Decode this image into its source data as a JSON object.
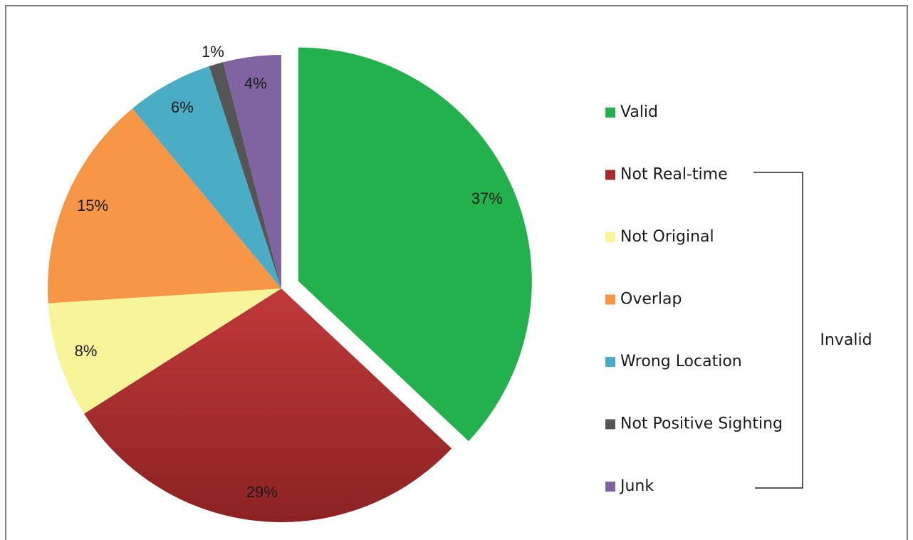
{
  "chart_data": {
    "type": "pie",
    "categories": [
      "Valid",
      "Not Real-time",
      "Not Original",
      "Overlap",
      "Wrong Location",
      "Not Positive Sighting",
      "Junk"
    ],
    "values": [
      37,
      29,
      8,
      15,
      6,
      1,
      4
    ],
    "value_labels": [
      "37%",
      "29%",
      "8%",
      "15%",
      "6%",
      "1%",
      "4%"
    ],
    "colors": [
      "#22b14c",
      "#a52d2c",
      "#f7f49a",
      "#f79646",
      "#4bacc6",
      "#555555",
      "#8064a2"
    ],
    "exploded": [
      0
    ],
    "annotation": "Invalid"
  }
}
